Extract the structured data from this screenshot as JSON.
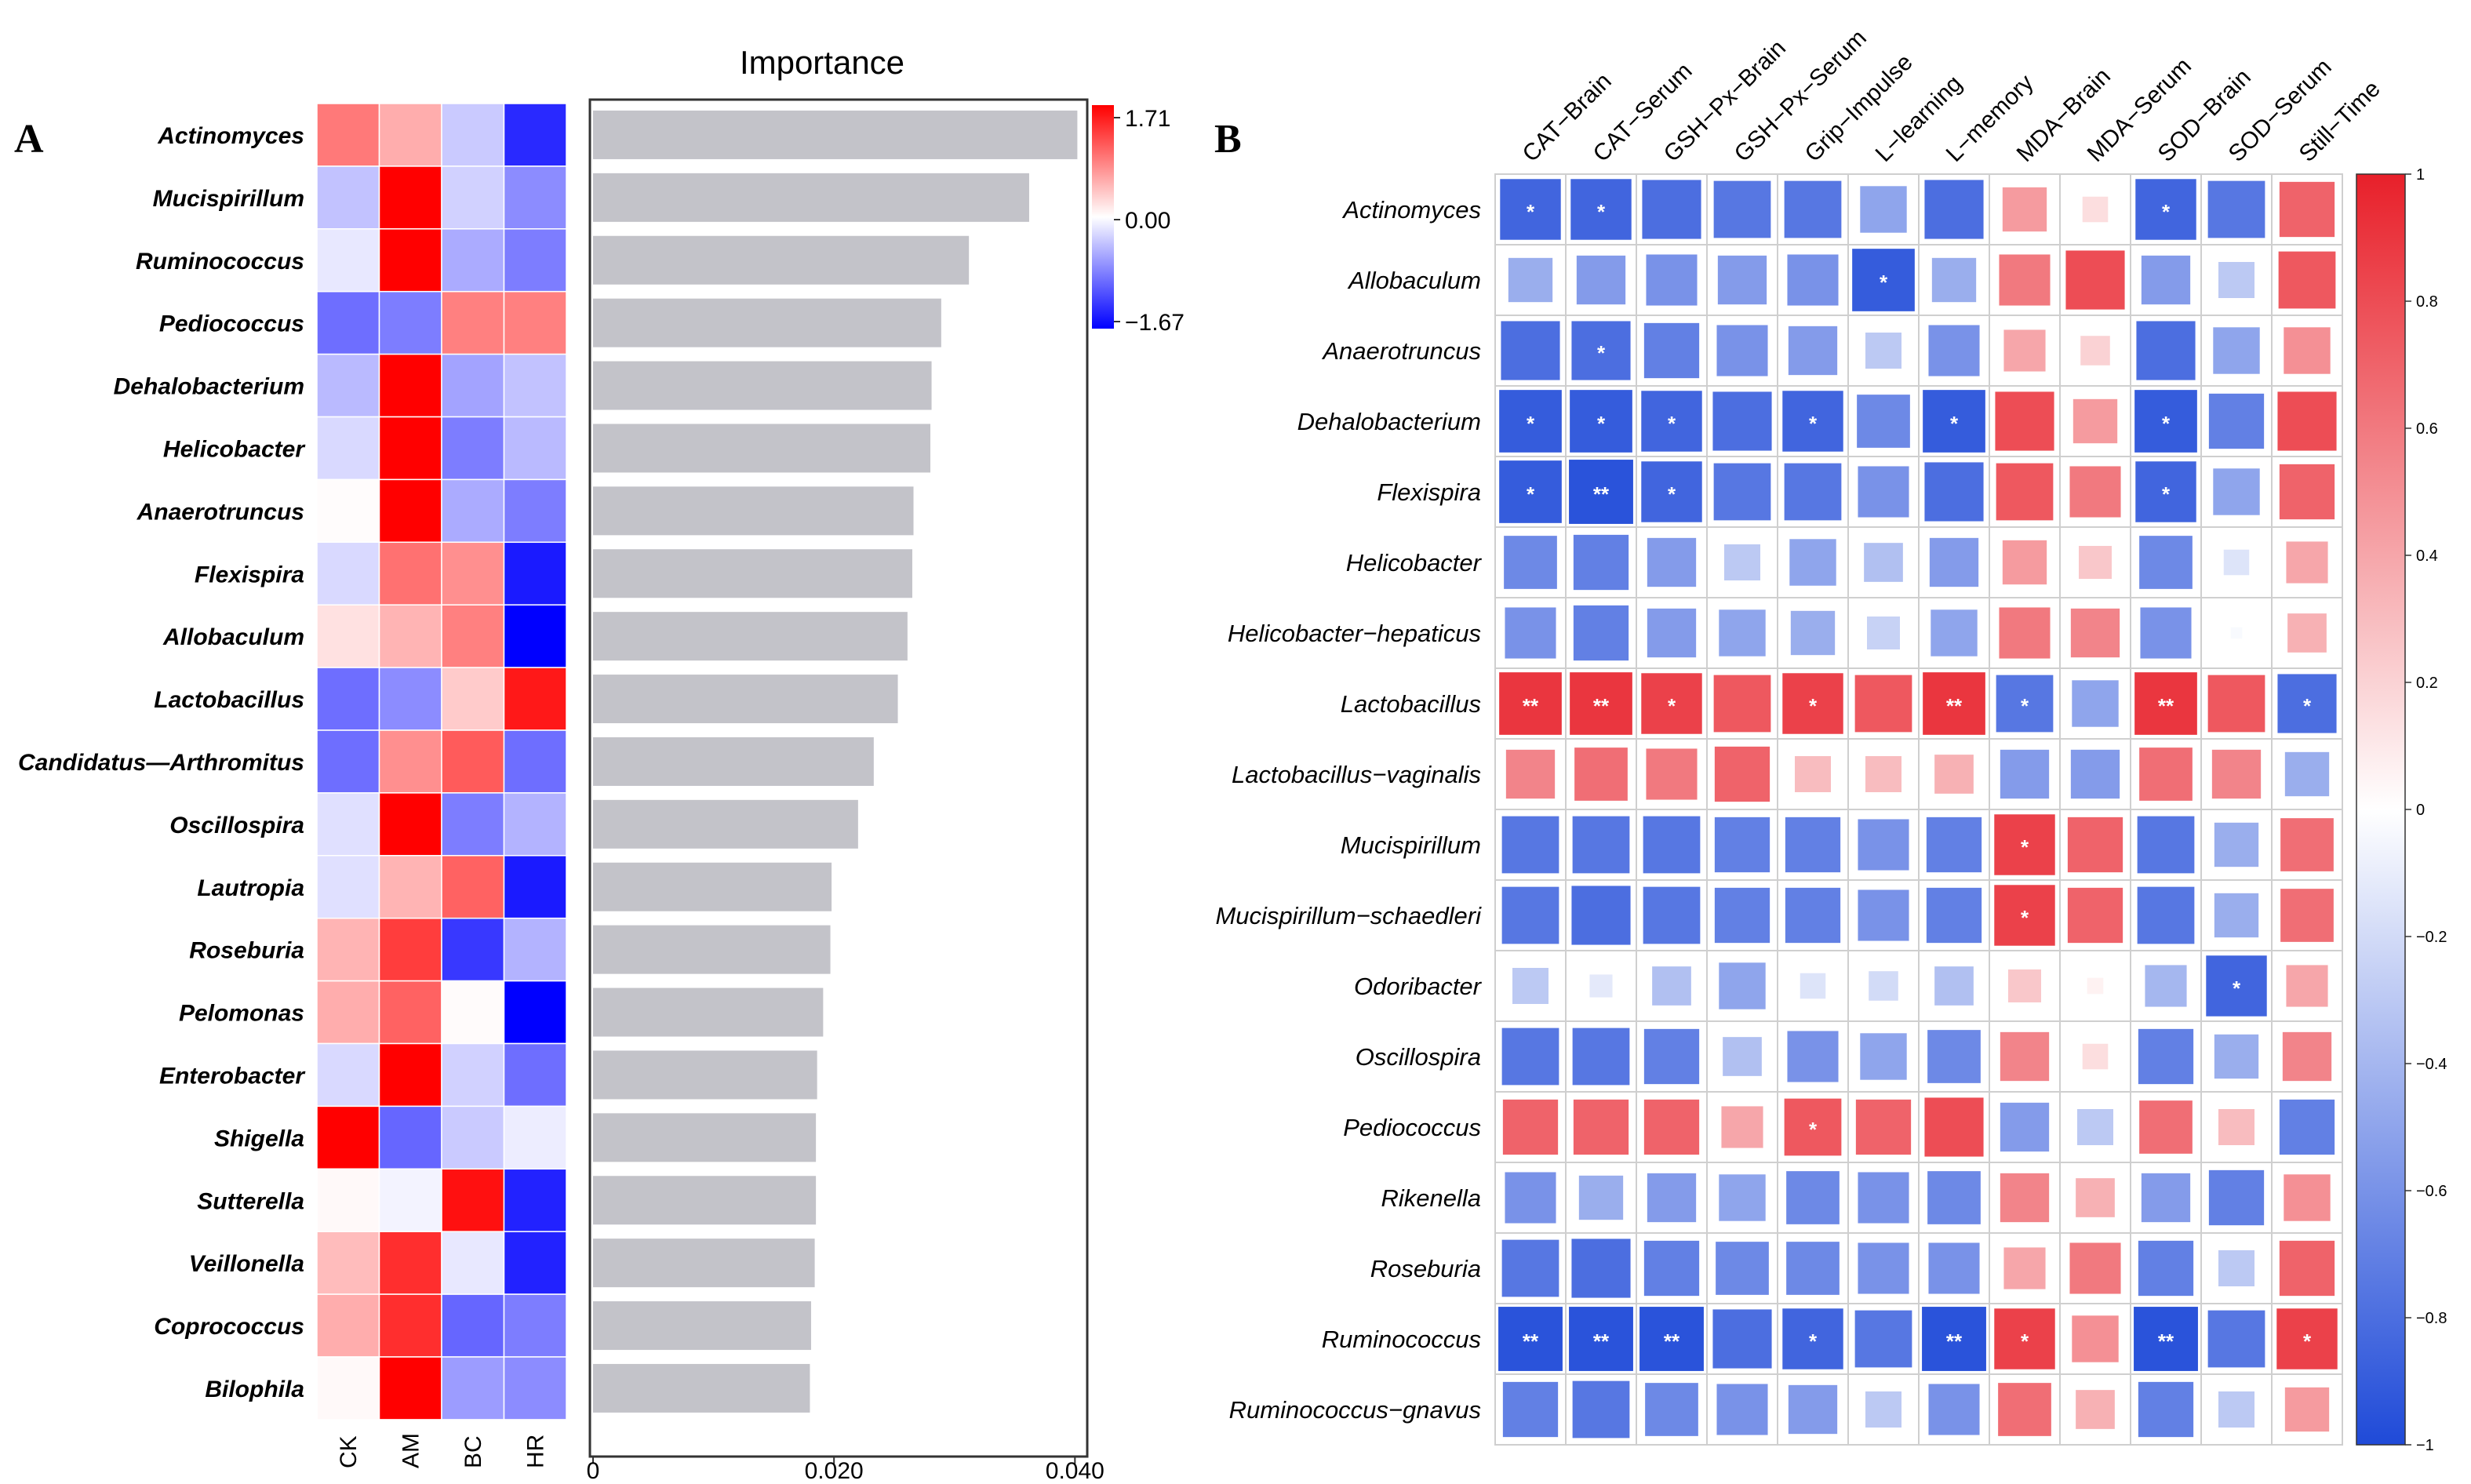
{
  "panel_a": {
    "label": "A",
    "importance_title": "Importance",
    "colorbar_labels": [
      "1.71",
      "0.00",
      "−1.67"
    ],
    "x_tick_labels": [
      "0",
      "0.020",
      "0.040"
    ]
  },
  "panel_b": {
    "label": "B",
    "colorbar_labels": [
      "1",
      "0.8",
      "0.6",
      "0.4",
      "0.2",
      "0",
      "−0.2",
      "−0.4",
      "−0.6",
      "−0.8",
      "−1"
    ]
  },
  "chart_data": [
    {
      "type": "heatmap",
      "title": "",
      "rows": [
        "Actinomyces",
        "Mucispirillum",
        "Ruminococcus",
        "Pediococcus",
        "Dehalobacterium",
        "Helicobacter",
        "Anaerotruncus",
        "Flexispira",
        "Allobaculum",
        "Lactobacillus",
        "Candidatus—Arthromitus",
        "Oscillospira",
        "Lautropia",
        "Roseburia",
        "Pelomonas",
        "Enterobacter",
        "Shigella",
        "Sutterella",
        "Veillonella",
        "Coprococcus",
        "Bilophila"
      ],
      "columns": [
        "CK",
        "AM",
        "BC",
        "HR"
      ],
      "values": [
        [
          0.9,
          0.55,
          -0.35,
          -1.4
        ],
        [
          -0.4,
          1.71,
          -0.3,
          -0.75
        ],
        [
          -0.15,
          1.71,
          -0.55,
          -0.85
        ],
        [
          -0.95,
          -0.85,
          0.85,
          0.85
        ],
        [
          -0.45,
          1.71,
          -0.6,
          -0.4
        ],
        [
          -0.25,
          1.71,
          -0.85,
          -0.45
        ],
        [
          0.02,
          1.71,
          -0.55,
          -0.85
        ],
        [
          -0.25,
          0.95,
          0.75,
          -1.5
        ],
        [
          0.2,
          0.5,
          0.85,
          -1.67
        ],
        [
          -0.95,
          -0.75,
          0.35,
          1.55
        ],
        [
          -0.95,
          0.75,
          1.1,
          -0.95
        ],
        [
          -0.2,
          1.71,
          -0.85,
          -0.5
        ],
        [
          -0.2,
          0.5,
          1.05,
          -1.5
        ],
        [
          0.5,
          1.3,
          -1.3,
          -0.5
        ],
        [
          0.55,
          1.05,
          0.03,
          -1.67
        ],
        [
          -0.25,
          1.71,
          -0.3,
          -0.95
        ],
        [
          1.71,
          -1.0,
          -0.35,
          -0.12
        ],
        [
          0.04,
          -0.08,
          1.6,
          -1.45
        ],
        [
          0.45,
          1.4,
          -0.15,
          -1.45
        ],
        [
          0.55,
          1.4,
          -1.0,
          -0.85
        ],
        [
          0.04,
          1.71,
          -0.65,
          -0.75
        ]
      ],
      "colorbar_range": [
        -1.67,
        1.71
      ]
    },
    {
      "type": "bar",
      "orientation": "horizontal",
      "title": "Importance",
      "categories": [
        "Actinomyces",
        "Mucispirillum",
        "Ruminococcus",
        "Pediococcus",
        "Dehalobacterium",
        "Helicobacter",
        "Anaerotruncus",
        "Flexispira",
        "Allobaculum",
        "Lactobacillus",
        "Candidatus—Arthromitus",
        "Oscillospira",
        "Lautropia",
        "Roseburia",
        "Pelomonas",
        "Enterobacter",
        "Shigella",
        "Sutterella",
        "Veillonella",
        "Coprococcus",
        "Bilophila"
      ],
      "values": [
        0.0402,
        0.0362,
        0.0312,
        0.0289,
        0.0281,
        0.028,
        0.0266,
        0.0265,
        0.0261,
        0.0253,
        0.0233,
        0.022,
        0.0198,
        0.0197,
        0.0191,
        0.0186,
        0.0185,
        0.0185,
        0.0184,
        0.0181,
        0.018
      ],
      "xlim": [
        0,
        0.0405
      ],
      "xticks": [
        0,
        0.02,
        0.04
      ]
    },
    {
      "type": "heatmap",
      "subtype": "correlation-squares",
      "title": "",
      "rows": [
        "Actinomyces",
        "Allobaculum",
        "Anaerotruncus",
        "Dehalobacterium",
        "Flexispira",
        "Helicobacter",
        "Helicobacter−hepaticus",
        "Lactobacillus",
        "Lactobacillus−vaginalis",
        "Mucispirillum",
        "Mucispirillum−schaedleri",
        "Odoribacter",
        "Oscillospira",
        "Pediococcus",
        "Rikenella",
        "Roseburia",
        "Ruminococcus",
        "Ruminococcus−gnavus"
      ],
      "columns": [
        "CAT−Brain",
        "CAT−Serum",
        "GSH−Px−Brain",
        "GSH−Px−Serum",
        "Grip−Impulse",
        "L−learning",
        "L−memory",
        "MDA−Brain",
        "MDA−Serum",
        "SOD−Brain",
        "SOD−Serum",
        "Still−Time"
      ],
      "values": [
        [
          -0.85,
          -0.85,
          -0.8,
          -0.75,
          -0.75,
          -0.5,
          -0.8,
          0.45,
          0.15,
          -0.85,
          -0.75,
          0.7
        ],
        [
          -0.45,
          -0.55,
          -0.6,
          -0.55,
          -0.6,
          -0.9,
          -0.45,
          0.6,
          0.8,
          -0.55,
          -0.3,
          0.75
        ],
        [
          -0.8,
          -0.8,
          -0.7,
          -0.6,
          -0.55,
          -0.3,
          -0.6,
          0.4,
          0.2,
          -0.8,
          -0.5,
          0.5
        ],
        [
          -0.9,
          -0.9,
          -0.85,
          -0.8,
          -0.85,
          -0.65,
          -0.9,
          0.8,
          0.45,
          -0.9,
          -0.7,
          0.8
        ],
        [
          -0.9,
          -0.95,
          -0.85,
          -0.75,
          -0.75,
          -0.6,
          -0.8,
          0.75,
          0.6,
          -0.85,
          -0.5,
          0.7
        ],
        [
          -0.65,
          -0.7,
          -0.55,
          -0.3,
          -0.5,
          -0.35,
          -0.55,
          0.45,
          0.25,
          -0.65,
          -0.15,
          0.4
        ],
        [
          -0.6,
          -0.7,
          -0.55,
          -0.5,
          -0.45,
          -0.25,
          -0.5,
          0.6,
          0.55,
          -0.6,
          -0.03,
          0.35
        ],
        [
          0.9,
          0.9,
          0.85,
          0.75,
          0.85,
          0.75,
          0.9,
          -0.75,
          -0.5,
          0.9,
          0.75,
          -0.8
        ],
        [
          0.55,
          0.65,
          0.6,
          0.7,
          0.3,
          0.3,
          0.35,
          -0.55,
          -0.55,
          0.65,
          0.55,
          -0.45
        ],
        [
          -0.75,
          -0.75,
          -0.75,
          -0.7,
          -0.7,
          -0.6,
          -0.7,
          0.85,
          0.7,
          -0.75,
          -0.45,
          0.65
        ],
        [
          -0.75,
          -0.8,
          -0.75,
          -0.7,
          -0.7,
          -0.6,
          -0.7,
          0.85,
          0.7,
          -0.75,
          -0.45,
          0.65
        ],
        [
          -0.3,
          -0.12,
          -0.35,
          -0.5,
          -0.15,
          -0.2,
          -0.35,
          0.25,
          0.06,
          -0.4,
          -0.85,
          0.4
        ],
        [
          -0.75,
          -0.75,
          -0.7,
          -0.35,
          -0.6,
          -0.5,
          -0.65,
          0.55,
          0.15,
          -0.7,
          -0.45,
          0.55
        ],
        [
          0.7,
          0.7,
          0.7,
          0.4,
          0.75,
          0.7,
          0.8,
          -0.55,
          -0.3,
          0.65,
          0.3,
          -0.7
        ],
        [
          -0.6,
          -0.45,
          -0.55,
          -0.5,
          -0.65,
          -0.6,
          -0.65,
          0.55,
          0.35,
          -0.55,
          -0.7,
          0.5
        ],
        [
          -0.75,
          -0.8,
          -0.7,
          -0.65,
          -0.65,
          -0.6,
          -0.6,
          0.4,
          0.6,
          -0.7,
          -0.3,
          0.7
        ],
        [
          -0.95,
          -0.95,
          -0.95,
          -0.8,
          -0.85,
          -0.75,
          -0.95,
          0.85,
          0.5,
          -0.95,
          -0.75,
          0.85
        ],
        [
          -0.7,
          -0.75,
          -0.65,
          -0.6,
          -0.55,
          -0.3,
          -0.6,
          0.65,
          0.35,
          -0.7,
          -0.3,
          0.45
        ]
      ],
      "significance": [
        [
          "*",
          "*",
          "",
          "",
          "",
          "",
          "",
          "",
          "",
          "*",
          "",
          ""
        ],
        [
          "",
          "",
          "",
          "",
          "",
          "*",
          "",
          "",
          "",
          "",
          "",
          ""
        ],
        [
          "",
          "*",
          "",
          "",
          "",
          "",
          "",
          "",
          "",
          "",
          "",
          ""
        ],
        [
          "*",
          "*",
          "*",
          "",
          "*",
          "",
          "*",
          "",
          "",
          "*",
          "",
          ""
        ],
        [
          "*",
          "**",
          "*",
          "",
          "",
          "",
          "",
          "",
          "",
          "*",
          "",
          ""
        ],
        [
          "",
          "",
          "",
          "",
          "",
          "",
          "",
          "",
          "",
          "",
          "",
          ""
        ],
        [
          "",
          "",
          "",
          "",
          "",
          "",
          "",
          "",
          "",
          "",
          "",
          ""
        ],
        [
          "**",
          "**",
          "*",
          "",
          "*",
          "",
          "**",
          "*",
          "",
          "**",
          "",
          "*"
        ],
        [
          "",
          "",
          "",
          "",
          "",
          "",
          "",
          "",
          "",
          "",
          "",
          ""
        ],
        [
          "",
          "",
          "",
          "",
          "",
          "",
          "",
          "*",
          "",
          "",
          "",
          ""
        ],
        [
          "",
          "",
          "",
          "",
          "",
          "",
          "",
          "*",
          "",
          "",
          "",
          ""
        ],
        [
          "",
          "",
          "",
          "",
          "",
          "",
          "",
          "",
          "",
          "",
          "*",
          ""
        ],
        [
          "",
          "",
          "",
          "",
          "",
          "",
          "",
          "",
          "",
          "",
          "",
          ""
        ],
        [
          "",
          "",
          "",
          "",
          "*",
          "",
          "",
          "",
          "",
          "",
          "",
          ""
        ],
        [
          "",
          "",
          "",
          "",
          "",
          "",
          "",
          "",
          "",
          "",
          "",
          ""
        ],
        [
          "",
          "",
          "",
          "",
          "",
          "",
          "",
          "",
          "",
          "",
          "",
          ""
        ],
        [
          "**",
          "**",
          "**",
          "",
          "*",
          "",
          "**",
          "*",
          "",
          "**",
          "",
          "*"
        ],
        [
          "",
          "",
          "",
          "",
          "",
          "",
          "",
          "",
          "",
          "",
          "",
          ""
        ]
      ],
      "colorbar_range": [
        -1,
        1
      ]
    }
  ]
}
